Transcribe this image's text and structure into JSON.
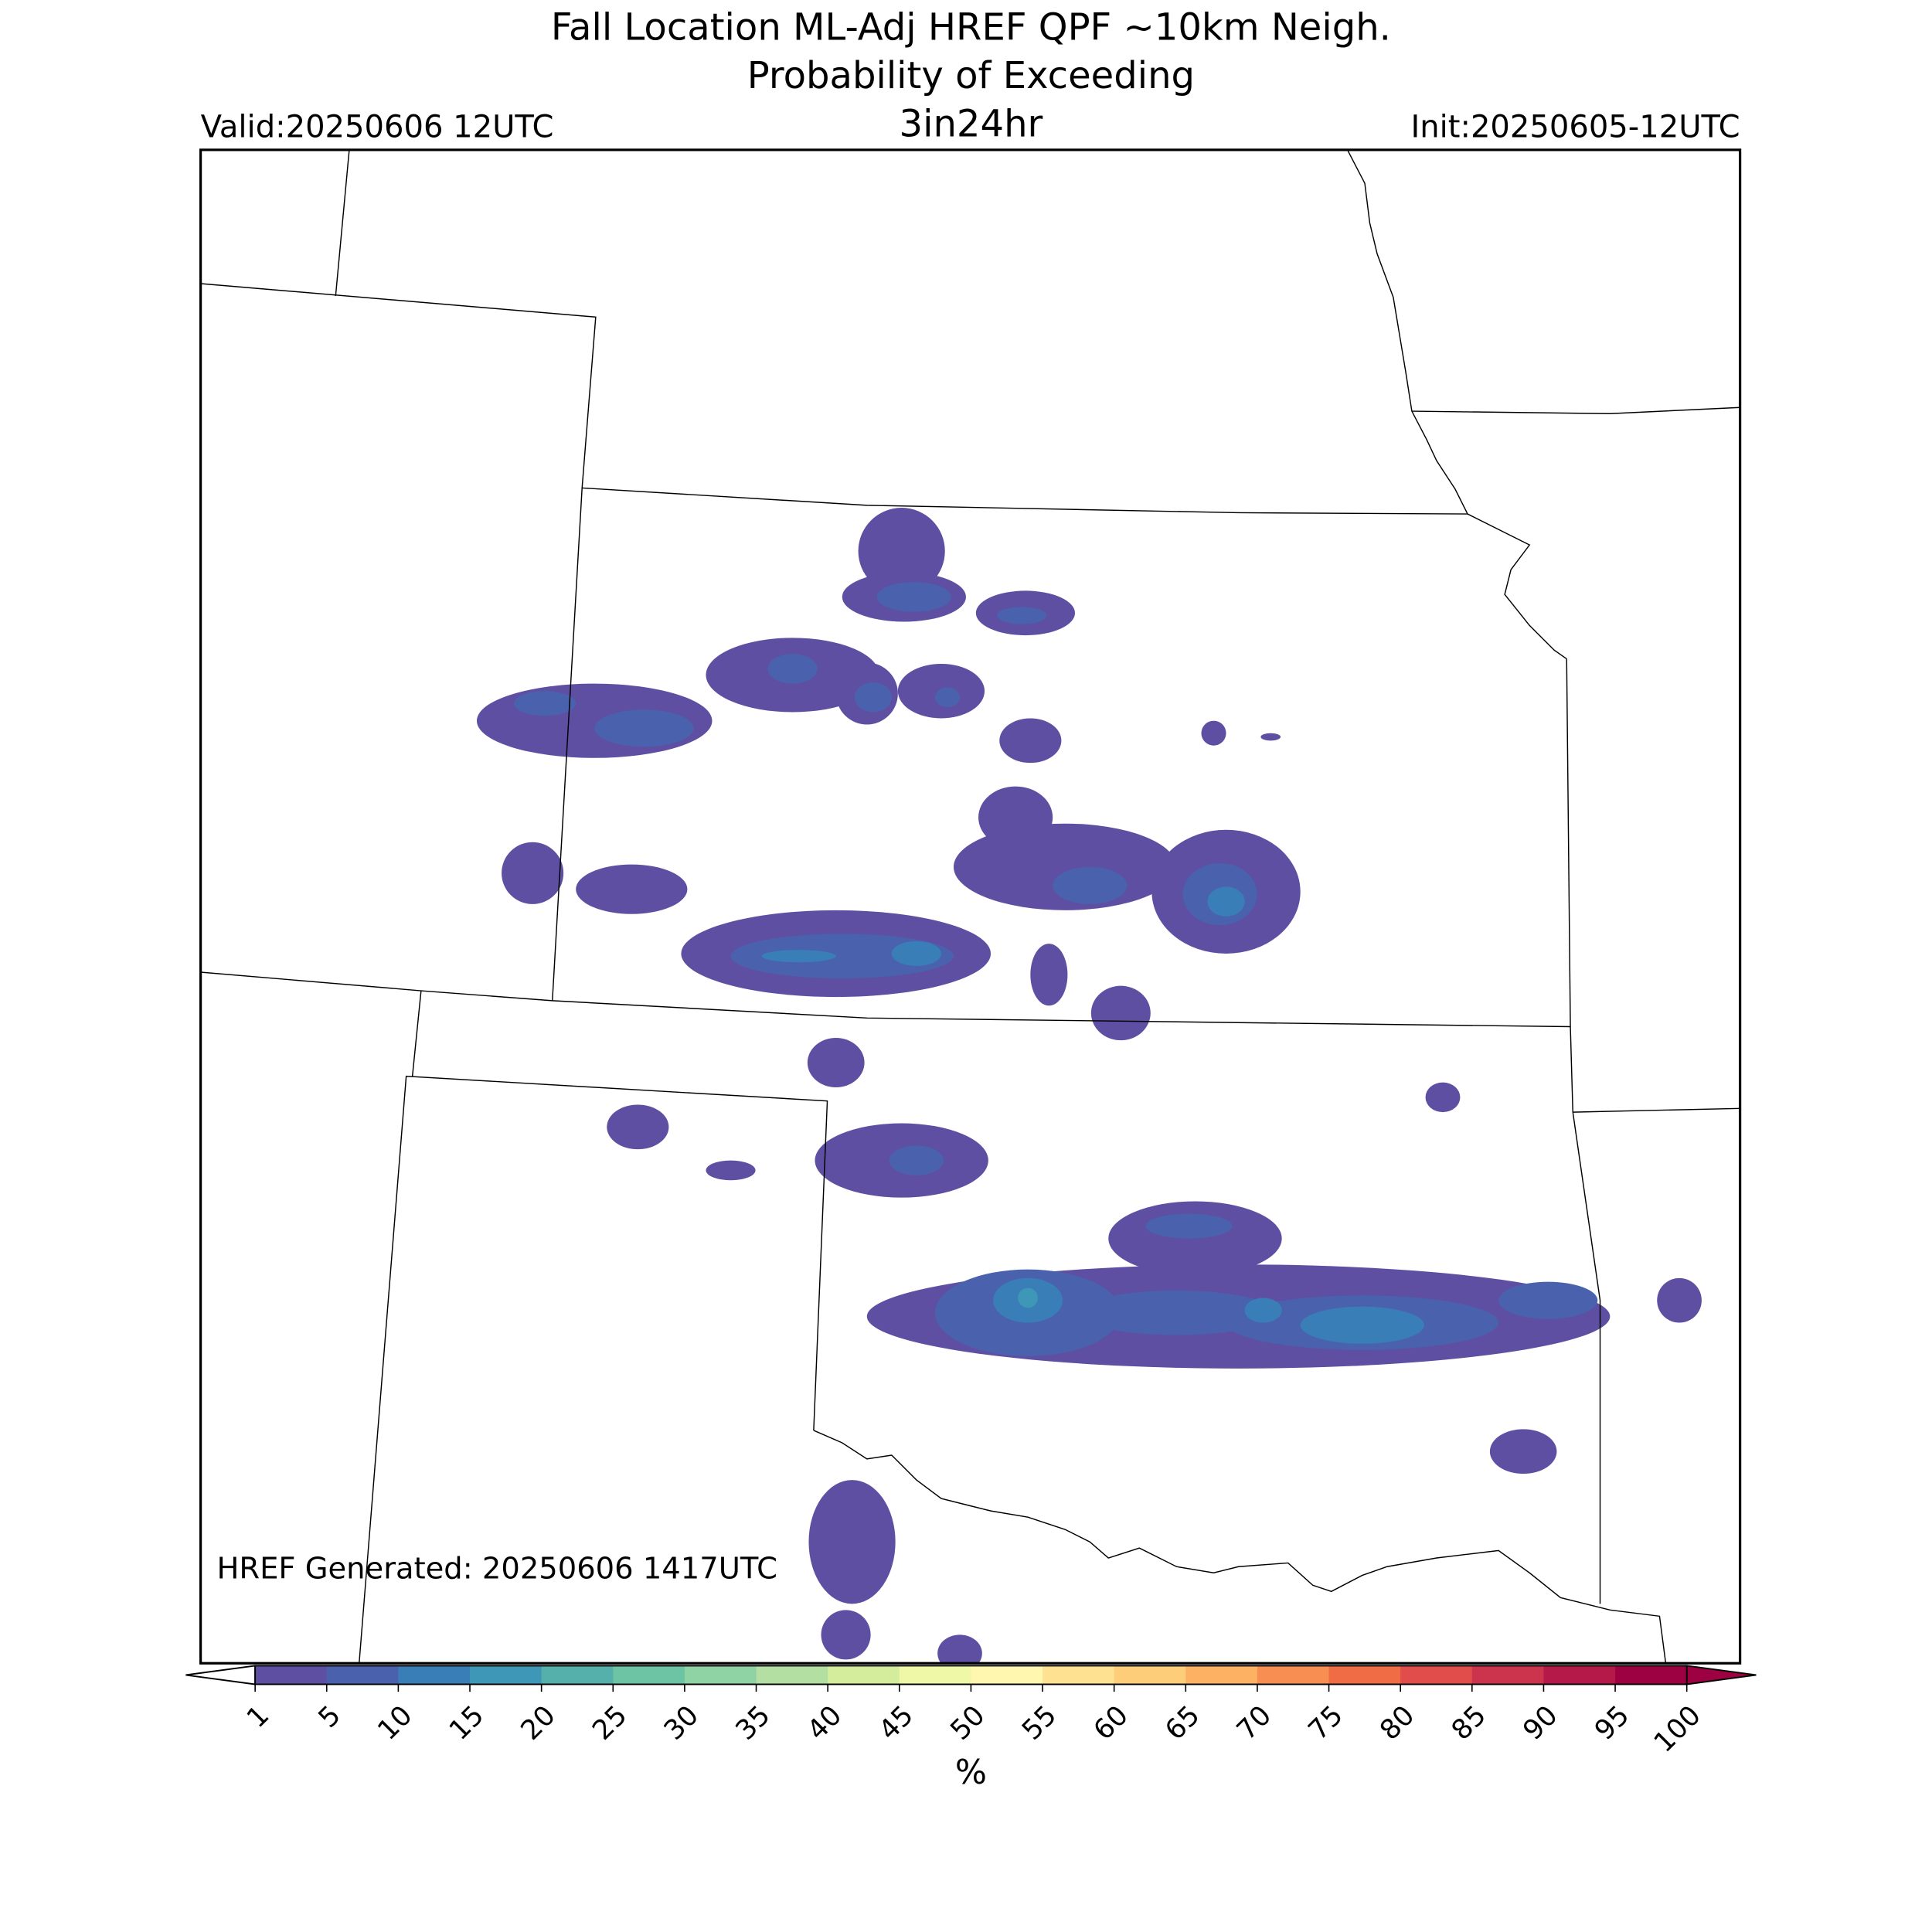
{
  "header": {
    "title_line1": "Fall Location ML-Adj HREF QPF ~10km Neigh.",
    "title_line2": "Probability of Exceeding",
    "threshold": "3in24hr",
    "valid": "Valid:20250606 12UTC",
    "init": "Init:20250605-12UTC"
  },
  "footer": {
    "generated": "HREF Generated: 20250606 1417UTC"
  },
  "colorbar": {
    "ticks": [
      1,
      5,
      10,
      15,
      20,
      25,
      30,
      35,
      40,
      45,
      50,
      55,
      60,
      65,
      70,
      75,
      80,
      85,
      90,
      95,
      100
    ],
    "colors": [
      "#5e4fa2",
      "#4a62ad",
      "#3a7eb8",
      "#3e97b7",
      "#55b0ab",
      "#6cc4a4",
      "#8fd2a4",
      "#b3e0a2",
      "#d3ed9c",
      "#eef8a6",
      "#fff6b0",
      "#fee291",
      "#fdcd79",
      "#fdb163",
      "#f98e52",
      "#f06c45",
      "#e04d4a",
      "#cc334c",
      "#b5194a",
      "#9e0142"
    ],
    "label": "%"
  }
}
